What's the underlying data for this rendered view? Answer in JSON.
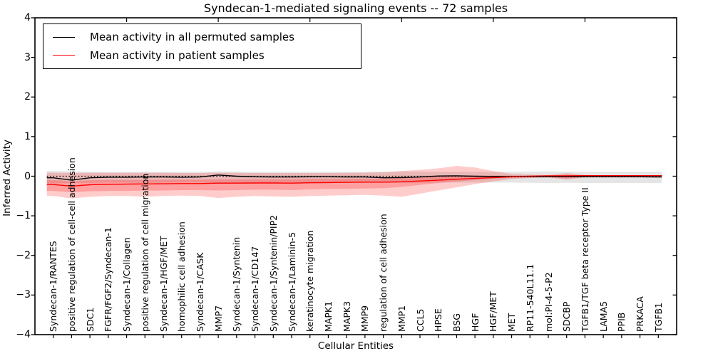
{
  "title": "Syndecan-1-mediated signaling events -- 72 samples",
  "axes": {
    "xlabel": "Cellular Entities",
    "ylabel": "Inferred Activity"
  },
  "legend": {
    "items": [
      {
        "label": "Mean activity in all permuted samples",
        "color": "#000000"
      },
      {
        "label": "Mean activity in patient samples",
        "color": "#ff0000"
      }
    ]
  },
  "chart_data": {
    "type": "line",
    "title": "Syndecan-1-mediated signaling events -- 72 samples",
    "xlabel": "Cellular Entities",
    "ylabel": "Inferred Activity",
    "ylim": [
      -4,
      4
    ],
    "yticks": [
      4,
      3,
      2,
      1,
      0,
      -1,
      -2,
      -3,
      -4
    ],
    "x_major_tick_positions": [
      5,
      10,
      15,
      20,
      25,
      30
    ],
    "grid": false,
    "legend_position": "upper left",
    "background": "#ffffff",
    "categories": [
      "Syndecan-1/RANTES",
      "positive regulation of cell-cell adhesion",
      "SDC1",
      "FGFR/FGF2/Syndecan-1",
      "Syndecan-1/Collagen",
      "positive regulation of cell migration",
      "Syndecan-1/HGF/MET",
      "homophilic cell adhesion",
      "Syndecan-1/CASK",
      "MMP7",
      "Syndecan-1/Syntenin",
      "Syndecan-1/CD147",
      "Syndecan-1/Syntenin/PIP2",
      "Syndecan-1/Laminin-5",
      "keratinocyte migration",
      "MAPK1",
      "MAPK3",
      "MMP9",
      "regulation of cell adhesion",
      "MMP1",
      "CCL5",
      "HPSE",
      "BSG",
      "HGF",
      "HGF/MET",
      "MET",
      "RP11-540L11.1",
      "mol:PI-4-5-P2",
      "SDCBP",
      "TGFB1/TGF beta receptor Type II",
      "LAMA5",
      "PPIB",
      "PRKACA",
      "TGFB1"
    ],
    "reference_line": {
      "y": 0,
      "style": "dotted",
      "color": "#000000"
    },
    "series": [
      {
        "name": "Mean activity in all permuted samples",
        "color": "#000000",
        "style": "solid",
        "values": [
          -0.04,
          -0.1,
          -0.04,
          -0.025,
          -0.025,
          -0.02,
          -0.02,
          -0.025,
          -0.02,
          0.03,
          0.0,
          -0.015,
          -0.02,
          -0.02,
          -0.015,
          -0.015,
          -0.02,
          -0.02,
          -0.04,
          -0.035,
          -0.02,
          0.005,
          0.01,
          0.0,
          -0.005,
          -0.01,
          -0.01,
          -0.01,
          -0.01,
          -0.015,
          -0.015,
          -0.015,
          -0.015,
          -0.02
        ]
      },
      {
        "name": "Mean activity in patient samples",
        "color": "#ff0000",
        "style": "solid",
        "values": [
          -0.21,
          -0.25,
          -0.215,
          -0.205,
          -0.2,
          -0.195,
          -0.19,
          -0.185,
          -0.185,
          -0.175,
          -0.175,
          -0.17,
          -0.17,
          -0.175,
          -0.165,
          -0.16,
          -0.155,
          -0.15,
          -0.15,
          -0.14,
          -0.12,
          -0.1,
          -0.075,
          -0.055,
          -0.035,
          -0.015,
          0.0,
          0.01,
          0.01,
          0.015,
          0.015,
          0.015,
          0.015,
          0.015
        ]
      }
    ],
    "bands": [
      {
        "name": "permuted samples range",
        "color": "#000000",
        "opacity": 0.1,
        "upper": [
          0.13,
          0.12,
          0.115,
          0.11,
          0.11,
          0.115,
          0.11,
          0.11,
          0.11,
          0.12,
          0.115,
          0.11,
          0.11,
          0.11,
          0.11,
          0.11,
          0.11,
          0.11,
          0.115,
          0.12,
          0.115,
          0.11,
          0.11,
          0.11,
          0.11,
          0.11,
          0.115,
          0.12,
          0.115,
          0.11,
          0.11,
          0.11,
          0.11,
          0.11
        ],
        "lower": [
          -0.18,
          -0.17,
          -0.165,
          -0.16,
          -0.16,
          -0.165,
          -0.16,
          -0.16,
          -0.16,
          -0.17,
          -0.165,
          -0.16,
          -0.16,
          -0.16,
          -0.16,
          -0.16,
          -0.16,
          -0.16,
          -0.165,
          -0.17,
          -0.165,
          -0.16,
          -0.16,
          -0.16,
          -0.16,
          -0.16,
          -0.165,
          -0.17,
          -0.165,
          -0.17,
          -0.17,
          -0.17,
          -0.17,
          -0.17
        ]
      },
      {
        "name": "patient samples outer band",
        "color": "#ff0000",
        "opacity": 0.2,
        "upper": [
          0.09,
          0.085,
          0.085,
          0.085,
          0.085,
          0.085,
          0.085,
          0.08,
          0.08,
          0.09,
          0.085,
          0.08,
          0.08,
          0.08,
          0.08,
          0.08,
          0.085,
          0.09,
          0.1,
          0.13,
          0.16,
          0.2,
          0.26,
          0.22,
          0.13,
          0.06,
          0.04,
          0.03,
          0.08,
          0.03,
          0.025,
          0.025,
          0.025,
          0.025
        ],
        "lower": [
          -0.5,
          -0.56,
          -0.52,
          -0.5,
          -0.5,
          -0.52,
          -0.5,
          -0.49,
          -0.5,
          -0.55,
          -0.52,
          -0.5,
          -0.51,
          -0.52,
          -0.5,
          -0.49,
          -0.48,
          -0.47,
          -0.49,
          -0.52,
          -0.44,
          -0.36,
          -0.28,
          -0.2,
          -0.13,
          -0.07,
          -0.045,
          -0.035,
          -0.085,
          -0.03,
          -0.03,
          -0.03,
          -0.03,
          -0.03
        ]
      },
      {
        "name": "patient samples inner band",
        "color": "#ff0000",
        "opacity": 0.22,
        "upper": [
          -0.095,
          -0.13,
          -0.1,
          -0.095,
          -0.095,
          -0.09,
          -0.09,
          -0.085,
          -0.085,
          -0.08,
          -0.08,
          -0.08,
          -0.075,
          -0.075,
          -0.07,
          -0.07,
          -0.065,
          -0.06,
          -0.055,
          -0.04,
          -0.02,
          0.0,
          0.005,
          0.01,
          0.01,
          0.01,
          0.015,
          0.015,
          0.035,
          0.02,
          0.02,
          0.02,
          0.02,
          0.02
        ],
        "lower": [
          -0.37,
          -0.41,
          -0.38,
          -0.37,
          -0.37,
          -0.36,
          -0.36,
          -0.35,
          -0.35,
          -0.36,
          -0.35,
          -0.34,
          -0.34,
          -0.35,
          -0.33,
          -0.32,
          -0.32,
          -0.31,
          -0.3,
          -0.27,
          -0.22,
          -0.17,
          -0.13,
          -0.095,
          -0.065,
          -0.04,
          -0.03,
          -0.025,
          -0.055,
          -0.02,
          -0.02,
          -0.02,
          -0.02,
          -0.02
        ]
      }
    ]
  }
}
